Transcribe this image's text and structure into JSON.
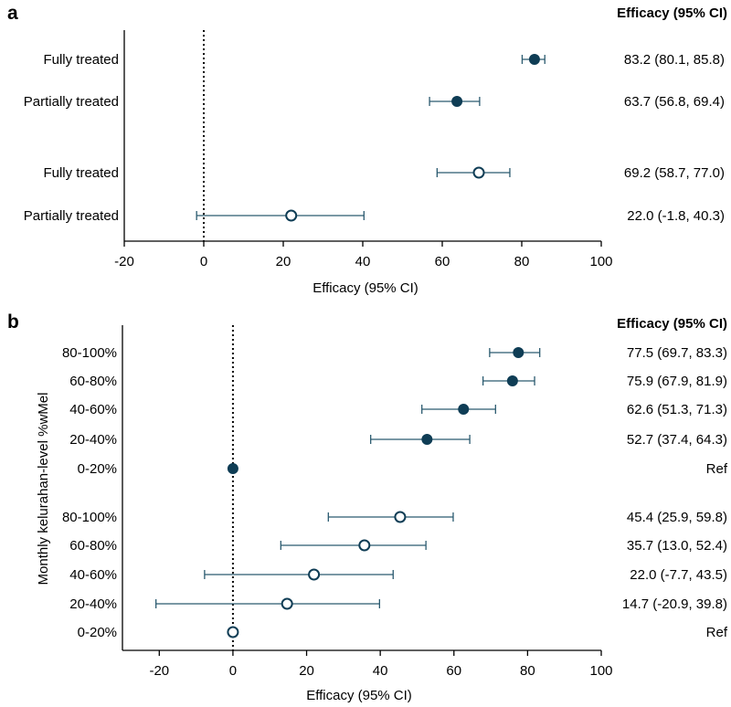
{
  "colors": {
    "marker": "#0f3d55",
    "ci": "#2a5a6f",
    "axis": "#000000",
    "text": "#000000"
  },
  "chart_data": [
    {
      "type": "scatter",
      "subtype": "forest",
      "panel_letter": "a",
      "column_header": "Efficacy (95% CI)",
      "xlabel": "Efficacy (95% CI)",
      "ylabel": "",
      "xlim": [
        -20,
        100
      ],
      "xticks": [
        -20,
        0,
        20,
        40,
        60,
        80,
        100
      ],
      "reference_line": 0,
      "rows": [
        {
          "label": "Fully treated",
          "est": 83.2,
          "lo": 80.1,
          "hi": 85.8,
          "filled": true,
          "text": "83.2 (80.1, 85.8)"
        },
        {
          "label": "Partially treated",
          "est": 63.7,
          "lo": 56.8,
          "hi": 69.4,
          "filled": true,
          "text": "63.7 (56.8, 69.4)"
        },
        {
          "label": "Fully treated",
          "est": 69.2,
          "lo": 58.7,
          "hi": 77.0,
          "filled": false,
          "text": "69.2 (58.7, 77.0)"
        },
        {
          "label": "Partially treated",
          "est": 22.0,
          "lo": -1.8,
          "hi": 40.3,
          "filled": false,
          "text": "22.0 (-1.8, 40.3)"
        }
      ]
    },
    {
      "type": "scatter",
      "subtype": "forest",
      "panel_letter": "b",
      "column_header": "Efficacy (95% CI)",
      "xlabel": "Efficacy (95% CI)",
      "ylabel": "Monthly kelurahan-level %wMel",
      "xlim": [
        -30,
        100
      ],
      "xticks": [
        -20,
        0,
        20,
        40,
        60,
        80,
        100
      ],
      "reference_line": 0,
      "rows": [
        {
          "label": "80-100%",
          "est": 77.5,
          "lo": 69.7,
          "hi": 83.3,
          "filled": true,
          "text": "77.5 (69.7, 83.3)"
        },
        {
          "label": "60-80%",
          "est": 75.9,
          "lo": 67.9,
          "hi": 81.9,
          "filled": true,
          "text": "75.9 (67.9, 81.9)"
        },
        {
          "label": "40-60%",
          "est": 62.6,
          "lo": 51.3,
          "hi": 71.3,
          "filled": true,
          "text": "62.6 (51.3, 71.3)"
        },
        {
          "label": "20-40%",
          "est": 52.7,
          "lo": 37.4,
          "hi": 64.3,
          "filled": true,
          "text": "52.7 (37.4, 64.3)"
        },
        {
          "label": "0-20%",
          "est": 0,
          "lo": null,
          "hi": null,
          "filled": true,
          "text": "Ref"
        },
        {
          "label": "80-100%",
          "est": 45.4,
          "lo": 25.9,
          "hi": 59.8,
          "filled": false,
          "text": "45.4 (25.9, 59.8)"
        },
        {
          "label": "60-80%",
          "est": 35.7,
          "lo": 13.0,
          "hi": 52.4,
          "filled": false,
          "text": "35.7 (13.0, 52.4)"
        },
        {
          "label": "40-60%",
          "est": 22.0,
          "lo": -7.7,
          "hi": 43.5,
          "filled": false,
          "text": "22.0 (-7.7, 43.5)"
        },
        {
          "label": "20-40%",
          "est": 14.7,
          "lo": -20.9,
          "hi": 39.8,
          "filled": false,
          "text": "14.7 (-20.9, 39.8)"
        },
        {
          "label": "0-20%",
          "est": 0,
          "lo": null,
          "hi": null,
          "filled": false,
          "text": "Ref"
        }
      ]
    }
  ]
}
